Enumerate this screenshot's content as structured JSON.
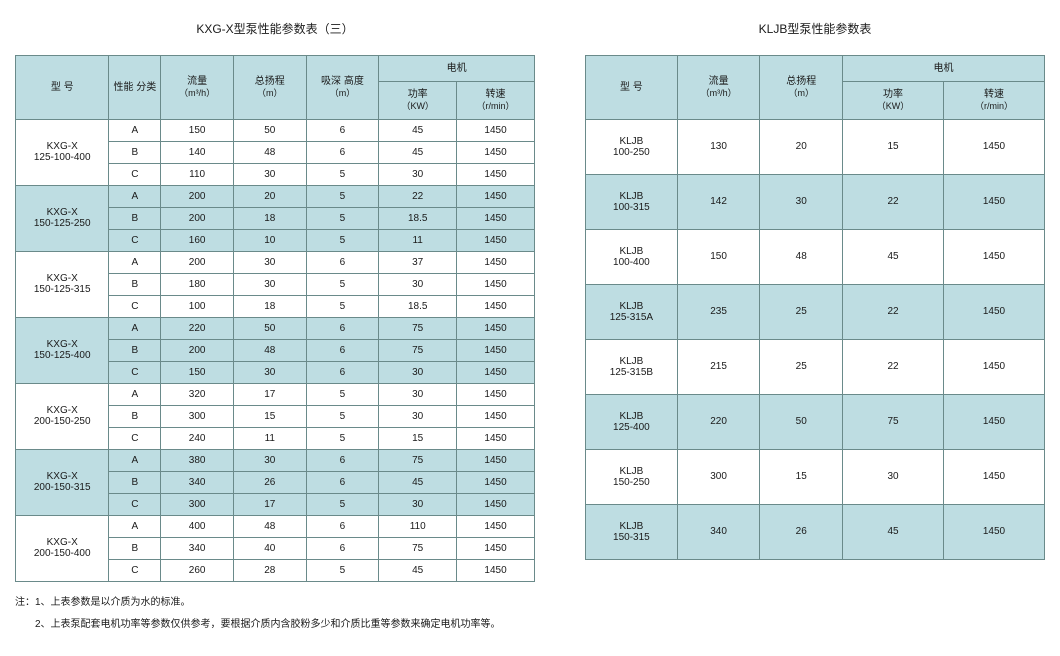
{
  "colors": {
    "header_bg": "#bedde2",
    "border": "#6a8a8a",
    "page_bg": "#ffffff",
    "text": "#1a1a1a"
  },
  "left": {
    "title": "KXG-X型泵性能参数表（三）",
    "headers": {
      "model": "型 号",
      "perf_class": "性能\n分类",
      "flow": "流量",
      "flow_unit": "（m³/h）",
      "head": "总扬程",
      "head_unit": "（m）",
      "suction": "吸深\n高度",
      "suction_unit": "（m）",
      "motor": "电机",
      "power": "功率",
      "power_unit": "（KW）",
      "speed": "转速",
      "speed_unit": "（r/min）"
    },
    "col_widths": [
      "18%",
      "10%",
      "14%",
      "14%",
      "14%",
      "15%",
      "15%"
    ],
    "groups": [
      {
        "model1": "KXG-X",
        "model2": "125-100-400",
        "shade": false,
        "rows": [
          [
            "A",
            "150",
            "50",
            "6",
            "45",
            "1450"
          ],
          [
            "B",
            "140",
            "48",
            "6",
            "45",
            "1450"
          ],
          [
            "C",
            "110",
            "30",
            "5",
            "30",
            "1450"
          ]
        ]
      },
      {
        "model1": "KXG-X",
        "model2": "150-125-250",
        "shade": true,
        "rows": [
          [
            "A",
            "200",
            "20",
            "5",
            "22",
            "1450"
          ],
          [
            "B",
            "200",
            "18",
            "5",
            "18.5",
            "1450"
          ],
          [
            "C",
            "160",
            "10",
            "5",
            "11",
            "1450"
          ]
        ]
      },
      {
        "model1": "KXG-X",
        "model2": "150-125-315",
        "shade": false,
        "rows": [
          [
            "A",
            "200",
            "30",
            "6",
            "37",
            "1450"
          ],
          [
            "B",
            "180",
            "30",
            "5",
            "30",
            "1450"
          ],
          [
            "C",
            "100",
            "18",
            "5",
            "18.5",
            "1450"
          ]
        ]
      },
      {
        "model1": "KXG-X",
        "model2": "150-125-400",
        "shade": true,
        "rows": [
          [
            "A",
            "220",
            "50",
            "6",
            "75",
            "1450"
          ],
          [
            "B",
            "200",
            "48",
            "6",
            "75",
            "1450"
          ],
          [
            "C",
            "150",
            "30",
            "6",
            "30",
            "1450"
          ]
        ]
      },
      {
        "model1": "KXG-X",
        "model2": "200-150-250",
        "shade": false,
        "rows": [
          [
            "A",
            "320",
            "17",
            "5",
            "30",
            "1450"
          ],
          [
            "B",
            "300",
            "15",
            "5",
            "30",
            "1450"
          ],
          [
            "C",
            "240",
            "11",
            "5",
            "15",
            "1450"
          ]
        ]
      },
      {
        "model1": "KXG-X",
        "model2": "200-150-315",
        "shade": true,
        "rows": [
          [
            "A",
            "380",
            "30",
            "6",
            "75",
            "1450"
          ],
          [
            "B",
            "340",
            "26",
            "6",
            "45",
            "1450"
          ],
          [
            "C",
            "300",
            "17",
            "5",
            "30",
            "1450"
          ]
        ]
      },
      {
        "model1": "KXG-X",
        "model2": "200-150-400",
        "shade": false,
        "rows": [
          [
            "A",
            "400",
            "48",
            "6",
            "110",
            "1450"
          ],
          [
            "B",
            "340",
            "40",
            "6",
            "75",
            "1450"
          ],
          [
            "C",
            "260",
            "28",
            "5",
            "45",
            "1450"
          ]
        ]
      }
    ],
    "notes": [
      "注：1、上表参数是以介质为水的标准。",
      "　　2、上表泵配套电机功率等参数仅供参考，要根据介质内含胶粉多少和介质比重等参数来确定电机功率等。"
    ]
  },
  "right": {
    "title": "KLJB型泵性能参数表",
    "headers": {
      "model": "型 号",
      "flow": "流量",
      "flow_unit": "（m³/h）",
      "head": "总扬程",
      "head_unit": "（m）",
      "motor": "电机",
      "power": "功率",
      "power_unit": "（KW）",
      "speed": "转速",
      "speed_unit": "（r/min）"
    },
    "col_widths": [
      "20%",
      "18%",
      "18%",
      "22%",
      "22%"
    ],
    "rows": [
      {
        "model1": "KLJB",
        "model2": "100-250",
        "flow": "130",
        "head": "20",
        "power": "15",
        "speed": "1450",
        "shade": false
      },
      {
        "model1": "KLJB",
        "model2": "100-315",
        "flow": "142",
        "head": "30",
        "power": "22",
        "speed": "1450",
        "shade": true
      },
      {
        "model1": "KLJB",
        "model2": "100-400",
        "flow": "150",
        "head": "48",
        "power": "45",
        "speed": "1450",
        "shade": false
      },
      {
        "model1": "KLJB",
        "model2": "125-315A",
        "flow": "235",
        "head": "25",
        "power": "22",
        "speed": "1450",
        "shade": true
      },
      {
        "model1": "KLJB",
        "model2": "125-315B",
        "flow": "215",
        "head": "25",
        "power": "22",
        "speed": "1450",
        "shade": false
      },
      {
        "model1": "KLJB",
        "model2": "125-400",
        "flow": "220",
        "head": "50",
        "power": "75",
        "speed": "1450",
        "shade": true
      },
      {
        "model1": "KLJB",
        "model2": "150-250",
        "flow": "300",
        "head": "15",
        "power": "30",
        "speed": "1450",
        "shade": false
      },
      {
        "model1": "KLJB",
        "model2": "150-315",
        "flow": "340",
        "head": "26",
        "power": "45",
        "speed": "1450",
        "shade": true
      }
    ]
  }
}
